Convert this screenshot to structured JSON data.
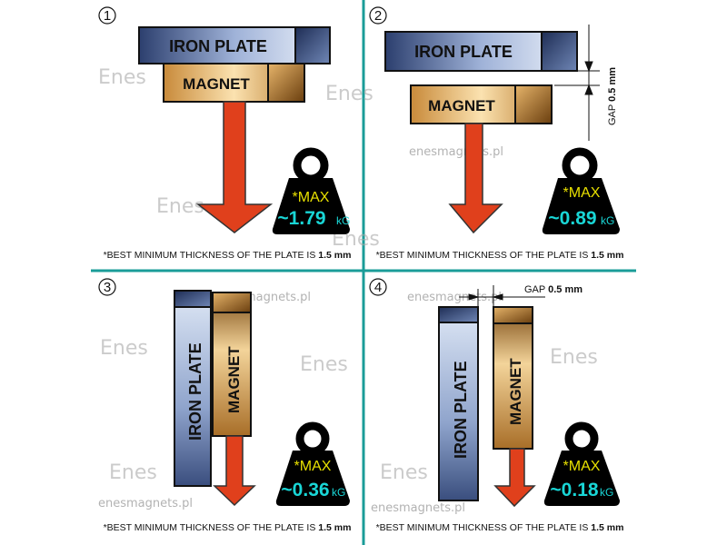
{
  "colors": {
    "divider": "#1a9c98",
    "max_text": "#e8e000",
    "value_text": "#19d6d6",
    "arrow": "#e0401c",
    "weight": "#000000"
  },
  "watermark": {
    "url": "enesmagnets.pl",
    "logo": "Enes"
  },
  "panels": [
    {
      "number": "1",
      "iron": "IRON PLATE",
      "magnet": "MAGNET",
      "max": "*MAX",
      "value": "~1.79",
      "unit": "kG",
      "note": "*BEST MINIMUM THICKNESS OF THE PLATE IS ",
      "note_bold": "1.5 mm"
    },
    {
      "number": "2",
      "iron": "IRON PLATE",
      "magnet": "MAGNET",
      "max": "*MAX",
      "value": "~0.89",
      "unit": "kG",
      "gap_label": "GAP",
      "gap_value": "0.5 mm",
      "note": "*BEST MINIMUM THICKNESS OF THE PLATE IS ",
      "note_bold": "1.5 mm"
    },
    {
      "number": "3",
      "iron": "IRON  PLATE",
      "magnet": "MAGNET",
      "max": "*MAX",
      "value": "~0.36",
      "unit": "kG",
      "note": "*BEST MINIMUM THICKNESS OF THE PLATE IS ",
      "note_bold": "1.5 mm"
    },
    {
      "number": "4",
      "iron": "IRON PLATE",
      "magnet": "MAGNET",
      "max": "*MAX",
      "value": "~0.18",
      "unit": "kG",
      "gap_label": "GAP",
      "gap_value": "0.5 mm",
      "note": "*BEST MINIMUM THICKNESS OF THE PLATE IS ",
      "note_bold": "1.5 mm"
    }
  ]
}
